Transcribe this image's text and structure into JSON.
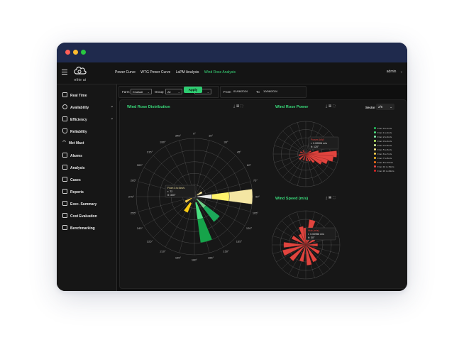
{
  "window_dots": [
    "#ff5f57",
    "#febc2e",
    "#28c840"
  ],
  "logo": {
    "text": "elite ai"
  },
  "nav": {
    "links": [
      {
        "label": "Power Curve"
      },
      {
        "label": "WTG Power Curve"
      },
      {
        "label": "LaPM Analysis"
      },
      {
        "label": "Wind Rose Analysis"
      }
    ],
    "active_index": 3,
    "user": "admin",
    "accent_color": "#39d97a"
  },
  "sidebar": {
    "items": [
      {
        "label": "Real Time",
        "icon": "monitor-icon"
      },
      {
        "label": "Availability",
        "icon": "clock-icon",
        "has_chevron": true
      },
      {
        "label": "Efficiency",
        "icon": "sliders-icon",
        "has_chevron": true
      },
      {
        "label": "Reliability",
        "icon": "shield-icon"
      },
      {
        "label": "Met Mast",
        "icon": "wifi-icon"
      },
      {
        "label": "Alarms",
        "icon": "alarm-icon"
      },
      {
        "label": "Analysis",
        "icon": "chart-icon"
      },
      {
        "label": "Cases",
        "icon": "file-icon"
      },
      {
        "label": "Reports",
        "icon": "report-icon"
      },
      {
        "label": "Exec. Summary",
        "icon": "briefcase-icon"
      },
      {
        "label": "Cost Evaluation",
        "icon": "table-icon"
      },
      {
        "label": "Benchmarking",
        "icon": "benchmark-icon"
      }
    ]
  },
  "filters": {
    "farm_label": "Farm",
    "farm_value": "Khalladi",
    "group_label": "Group",
    "group_value": "All",
    "wtg_label": "WTG",
    "wtg_value": "All",
    "from_label": "From",
    "from_value": "01/06/2024",
    "to_label": "To",
    "to_value": "10/06/2024",
    "apply_label": "Apply"
  },
  "panels": {
    "wind_rose_distribution": {
      "title": "Wind Rose Distribution"
    },
    "wind_rose_power": {
      "title": "Wind Rose Power"
    },
    "wind_speed": {
      "title": "Wind Speed (m/s)"
    },
    "sector_label": "Sector",
    "sector_value": "2/6"
  },
  "chart_data": [
    {
      "type": "polar-bar",
      "title": "Wind Rose Distribution",
      "angular_ticks": [
        "0°",
        "15°",
        "30°",
        "45°",
        "60°",
        "75°",
        "90°",
        "105°",
        "120°",
        "135°",
        "150°",
        "165°",
        "180°",
        "195°",
        "210°",
        "225°",
        "240°",
        "255°",
        "270°",
        "285°",
        "300°",
        "315°",
        "330°",
        "345°"
      ],
      "tooltip": {
        "line1": "From 3 to 6m/s",
        "line2": "r: 72",
        "line3": "θ: 300°"
      },
      "segments": [
        {
          "theta": 90,
          "r_inner": 0.6,
          "r_outer": 1.0,
          "color": "#f4e6a3"
        },
        {
          "theta": 90,
          "r_inner": 0.3,
          "r_outer": 0.6,
          "color": "#fff36b"
        },
        {
          "theta": 90,
          "r_inner": 0.05,
          "r_outer": 0.3,
          "color": "#e8e8e8"
        },
        {
          "theta": 135,
          "r_inner": 0.25,
          "r_outer": 0.55,
          "color": "#1ca85a"
        },
        {
          "theta": 135,
          "r_inner": 0.05,
          "r_outer": 0.25,
          "color": "#6fd089"
        },
        {
          "theta": 165,
          "r_inner": 0.4,
          "r_outer": 0.8,
          "color": "#16a34a"
        },
        {
          "theta": 165,
          "r_inner": 0.1,
          "r_outer": 0.4,
          "color": "#4ade80"
        },
        {
          "theta": 210,
          "r_inner": 0.12,
          "r_outer": 0.3,
          "color": "#facc15"
        },
        {
          "theta": 240,
          "r_inner": 0.05,
          "r_outer": 0.18,
          "color": "#f2c94c"
        },
        {
          "theta": 60,
          "r_inner": 0.05,
          "r_outer": 0.15,
          "color": "#f9e79f"
        }
      ]
    },
    {
      "type": "polar-bar",
      "title": "Wind Rose Power",
      "tooltip": {
        "line1": "Power (kW)",
        "line2": "r: 0.00004 m/s",
        "line3": "θ: 120°"
      },
      "series": [
        {
          "name": "From 0 to 1m/s",
          "color": "#22c55e"
        },
        {
          "name": "From 1 to 2m/s",
          "color": "#4ade80"
        },
        {
          "name": "From 2 to 3m/s",
          "color": "#86efac"
        },
        {
          "name": "From 3 to 4m/s",
          "color": "#bef264"
        },
        {
          "name": "From 4 to 5m/s",
          "color": "#d9f99d"
        },
        {
          "name": "From 5 to 6m/s",
          "color": "#fde68a"
        },
        {
          "name": "From 6 to 7m/s",
          "color": "#fcd34d"
        },
        {
          "name": "From 7 to 8m/s",
          "color": "#fbbf24"
        },
        {
          "name": "From 8 to 10m/s",
          "color": "#f97316"
        },
        {
          "name": "From 10 to 15m/s",
          "color": "#ef4444"
        },
        {
          "name": "From 15 to 20m/s",
          "color": "#dc2626"
        }
      ],
      "petals": [
        {
          "theta": 90,
          "r": 0.95
        },
        {
          "theta": 100,
          "r": 0.85
        },
        {
          "theta": 110,
          "r": 0.7
        },
        {
          "theta": 120,
          "r": 0.55
        },
        {
          "theta": 135,
          "r": 0.35
        },
        {
          "theta": 150,
          "r": 0.25
        },
        {
          "theta": 170,
          "r": 0.22
        },
        {
          "theta": 200,
          "r": 0.2
        },
        {
          "theta": 230,
          "r": 0.25
        },
        {
          "theta": 260,
          "r": 0.22
        },
        {
          "theta": 290,
          "r": 0.18
        },
        {
          "theta": 320,
          "r": 0.14
        },
        {
          "theta": 80,
          "r": 0.4
        },
        {
          "theta": 60,
          "r": 0.18
        }
      ]
    },
    {
      "type": "polar-bar",
      "title": "Wind Speed (m/s)",
      "tooltip": {
        "line1": "Hub (m/s)",
        "line2": "r: 0.00956 m/s",
        "line3": "θ: 30°"
      },
      "petals": [
        {
          "theta": 0,
          "r": 0.5
        },
        {
          "theta": 15,
          "r": 0.75
        },
        {
          "theta": 30,
          "r": 0.45
        },
        {
          "theta": 60,
          "r": 0.3
        },
        {
          "theta": 90,
          "r": 0.35
        },
        {
          "theta": 120,
          "r": 0.45
        },
        {
          "theta": 150,
          "r": 0.55
        },
        {
          "theta": 170,
          "r": 0.6
        },
        {
          "theta": 195,
          "r": 0.5
        },
        {
          "theta": 225,
          "r": 0.6
        },
        {
          "theta": 250,
          "r": 0.7
        },
        {
          "theta": 270,
          "r": 0.65
        },
        {
          "theta": 300,
          "r": 0.45
        },
        {
          "theta": 330,
          "r": 0.35
        },
        {
          "theta": 345,
          "r": 0.55
        }
      ]
    }
  ],
  "colors": {
    "accent": "#39d97a",
    "petal_red": "#e0443e",
    "grid": "#9a9a9a"
  }
}
